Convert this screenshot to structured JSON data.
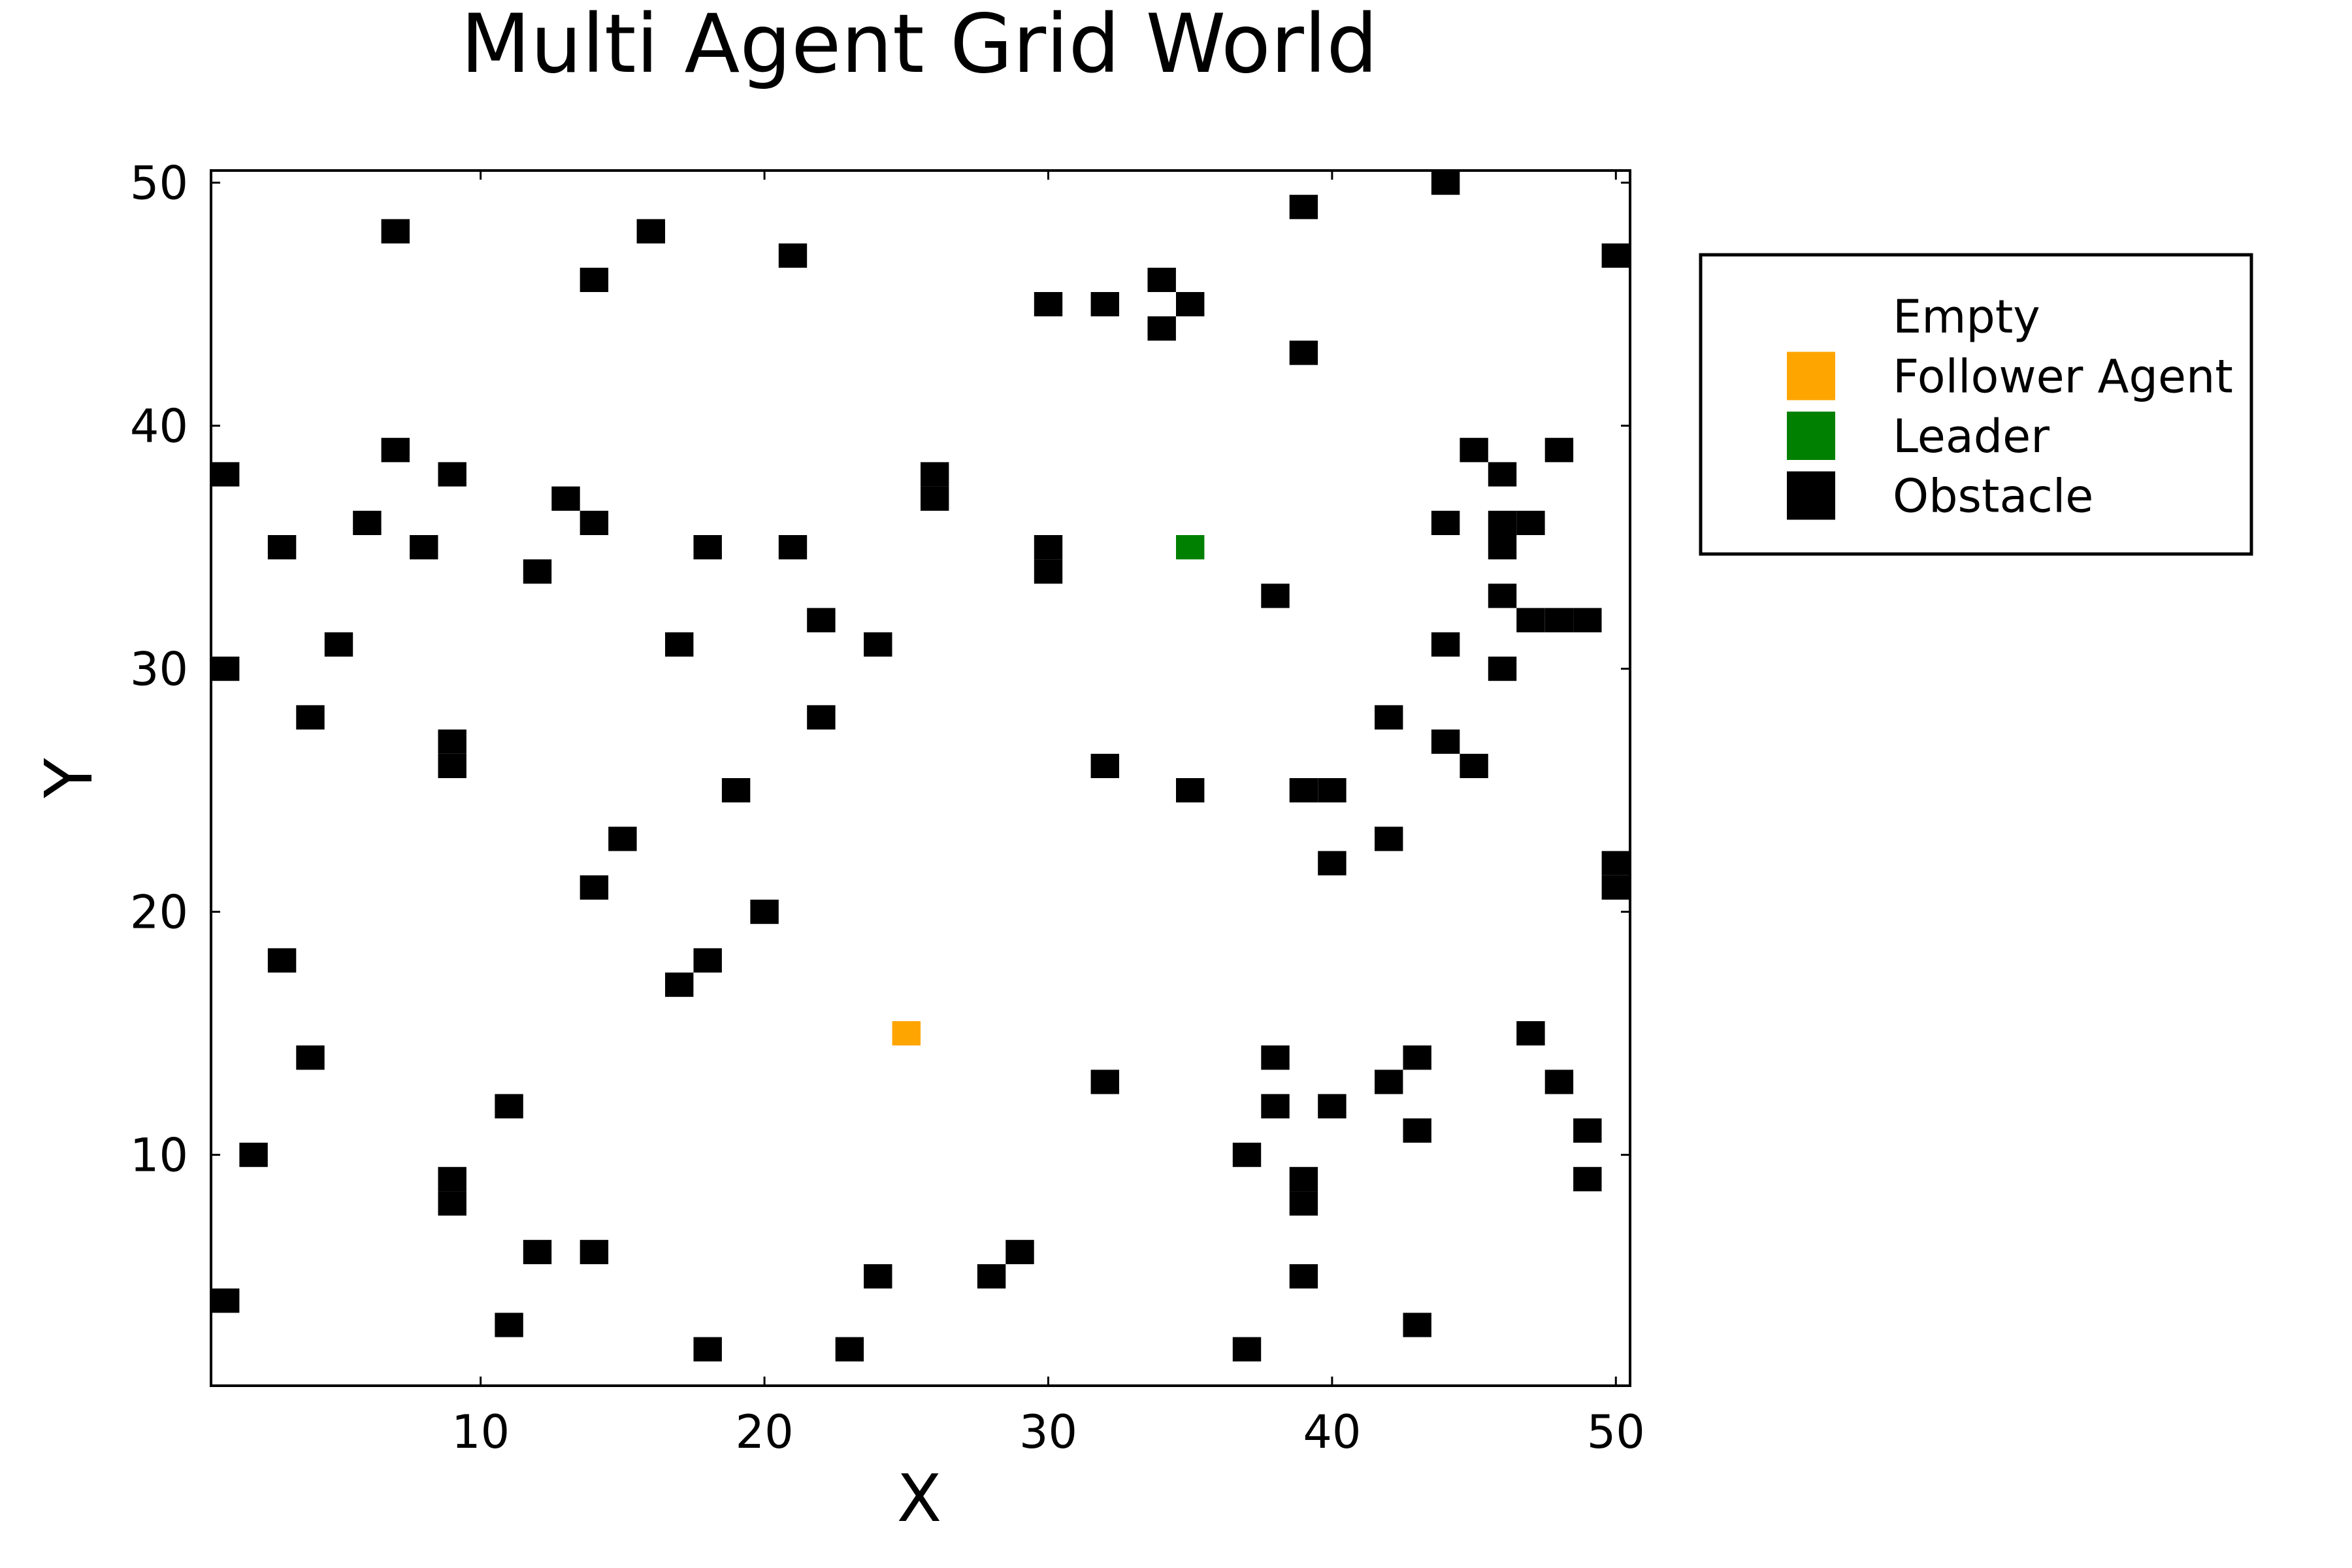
{
  "chart_data": {
    "type": "scatter",
    "title": "Multi Agent Grid World",
    "xlabel": "X",
    "ylabel": "Y",
    "xlim": [
      0.5,
      50.5
    ],
    "ylim": [
      0.5,
      50.5
    ],
    "xticks": [
      "10",
      "20",
      "30",
      "40",
      "50"
    ],
    "yticks": [
      "10",
      "20",
      "30",
      "40",
      "50"
    ],
    "grid": false,
    "legend_position": "right",
    "series": [
      {
        "name": "Empty",
        "color": "#ffffff",
        "points": []
      },
      {
        "name": "Follower Agent",
        "color": "#ffa500",
        "points": [
          [
            25,
            15
          ]
        ]
      },
      {
        "name": "Leader",
        "color": "#008000",
        "points": [
          [
            35,
            35
          ]
        ]
      },
      {
        "name": "Obstacle",
        "color": "#000000",
        "points": [
          [
            44,
            50
          ],
          [
            39,
            49
          ],
          [
            7,
            48
          ],
          [
            16,
            48
          ],
          [
            21,
            47
          ],
          [
            50,
            47
          ],
          [
            14,
            46
          ],
          [
            34,
            46
          ],
          [
            30,
            45
          ],
          [
            32,
            45
          ],
          [
            35,
            45
          ],
          [
            34,
            44
          ],
          [
            39,
            43
          ],
          [
            7,
            39
          ],
          [
            45,
            39
          ],
          [
            48,
            39
          ],
          [
            1,
            38
          ],
          [
            9,
            38
          ],
          [
            26,
            38
          ],
          [
            46,
            38
          ],
          [
            13,
            37
          ],
          [
            26,
            37
          ],
          [
            6,
            36
          ],
          [
            14,
            36
          ],
          [
            44,
            36
          ],
          [
            46,
            36
          ],
          [
            47,
            36
          ],
          [
            3,
            35
          ],
          [
            8,
            35
          ],
          [
            18,
            35
          ],
          [
            21,
            35
          ],
          [
            30,
            35
          ],
          [
            46,
            35
          ],
          [
            12,
            34
          ],
          [
            30,
            34
          ],
          [
            38,
            33
          ],
          [
            46,
            33
          ],
          [
            22,
            32
          ],
          [
            47,
            32
          ],
          [
            48,
            32
          ],
          [
            49,
            32
          ],
          [
            5,
            31
          ],
          [
            17,
            31
          ],
          [
            24,
            31
          ],
          [
            44,
            31
          ],
          [
            1,
            30
          ],
          [
            46,
            30
          ],
          [
            4,
            28
          ],
          [
            22,
            28
          ],
          [
            42,
            28
          ],
          [
            9,
            27
          ],
          [
            44,
            27
          ],
          [
            9,
            26
          ],
          [
            32,
            26
          ],
          [
            45,
            26
          ],
          [
            19,
            25
          ],
          [
            35,
            25
          ],
          [
            39,
            25
          ],
          [
            40,
            25
          ],
          [
            15,
            23
          ],
          [
            42,
            23
          ],
          [
            40,
            22
          ],
          [
            50,
            22
          ],
          [
            14,
            21
          ],
          [
            50,
            21
          ],
          [
            20,
            20
          ],
          [
            3,
            18
          ],
          [
            18,
            18
          ],
          [
            17,
            17
          ],
          [
            47,
            15
          ],
          [
            4,
            14
          ],
          [
            38,
            14
          ],
          [
            43,
            14
          ],
          [
            32,
            13
          ],
          [
            42,
            13
          ],
          [
            48,
            13
          ],
          [
            11,
            12
          ],
          [
            38,
            12
          ],
          [
            40,
            12
          ],
          [
            43,
            11
          ],
          [
            49,
            11
          ],
          [
            2,
            10
          ],
          [
            37,
            10
          ],
          [
            9,
            9
          ],
          [
            39,
            9
          ],
          [
            49,
            9
          ],
          [
            9,
            8
          ],
          [
            39,
            8
          ],
          [
            12,
            6
          ],
          [
            14,
            6
          ],
          [
            29,
            6
          ],
          [
            24,
            5
          ],
          [
            28,
            5
          ],
          [
            39,
            5
          ],
          [
            1,
            4
          ],
          [
            11,
            3
          ],
          [
            43,
            3
          ],
          [
            18,
            2
          ],
          [
            23,
            2
          ],
          [
            37,
            2
          ]
        ]
      }
    ]
  }
}
